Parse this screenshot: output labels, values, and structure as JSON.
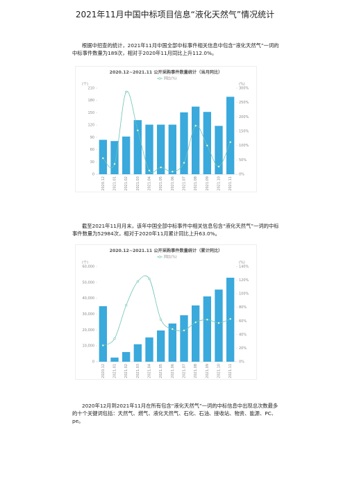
{
  "header": {
    "title": "2021年11月中国中标项目信息“液化天然气”情况统计"
  },
  "paragraphs": [
    "根据中招查的统计，2021年11月中国全部中标事件相关信息中包含“液化天然气”一词的中标事件数量为189次，相对于2020年11月同比上升112.0%。",
    "截至2021年11月月末，该年中国全部中标事件中相关信息包含“液化天然气”一词的中标事件数量为52984次，相对于2020年11月累计同比上升63.0%。",
    "2020年12月到2021年11月在所有包含“液化天然气”一词的中标信息中出现总次数最多的十个关键词包括：天然气、燃气、液化天然气、石化、石油、接收站、物资、能源、PC、pe。"
  ],
  "chart_data": [
    {
      "type": "combo",
      "title": "2020.12~2021.11 公开采购事件数量统计（当月同比）",
      "ylabel": "(个)",
      "y2label": "(%)",
      "categories": [
        "2020.12",
        "2021.01",
        "2021.02",
        "2021.03",
        "2021.04",
        "2021.05",
        "2021.06",
        "2021.07",
        "2021.08",
        "2021.09",
        "2021.10",
        "2021.11"
      ],
      "series": [
        {
          "type": "bar",
          "color": "#3aa9dc",
          "values": [
            84,
            81,
            92,
            132,
            121,
            121,
            121,
            151,
            165,
            152,
            118,
            189
          ]
        },
        {
          "type": "line",
          "name": "同比(%)",
          "color": "#6cc3b5",
          "axis": "y2",
          "values": [
            56,
            36,
            287,
            153,
            13,
            24,
            9,
            40,
            169,
            100,
            27,
            112
          ]
        }
      ],
      "ylim": [
        0,
        210
      ],
      "yticks": [
        0,
        30,
        60,
        90,
        120,
        150,
        180,
        210
      ],
      "y2lim": [
        0,
        300
      ],
      "y2ticks": [
        {
          "value": 0,
          "label": "0%"
        },
        {
          "value": 50,
          "label": "50%"
        },
        {
          "value": 100,
          "label": "100%"
        },
        {
          "value": 150,
          "label": "150%"
        },
        {
          "value": 200,
          "label": "200%"
        },
        {
          "value": 250,
          "label": "250%"
        },
        {
          "value": 300,
          "label": "300%"
        }
      ]
    },
    {
      "type": "combo",
      "title": "2020.12~2021.11 公开采购事件数量统计（累计同比）",
      "ylabel": "(个)",
      "y2label": "(%)",
      "categories": [
        "2020.12",
        "2021.01",
        "2021.02",
        "2021.03",
        "2021.04",
        "2021.05",
        "2021.06",
        "2021.07",
        "2021.08",
        "2021.09",
        "2021.10",
        "2021.11"
      ],
      "series": [
        {
          "type": "bar",
          "color": "#3aa9dc",
          "values": [
            35000,
            2600,
            6100,
            11000,
            15300,
            19700,
            24100,
            29300,
            35500,
            41200,
            45500,
            52984
          ]
        },
        {
          "type": "line",
          "name": "同比(%)",
          "color": "#6cc3b5",
          "axis": "y2",
          "values": [
            24,
            34,
            83,
            118,
            122,
            62,
            48,
            46,
            58,
            62,
            57,
            63
          ]
        }
      ],
      "ylim": [
        0,
        60000
      ],
      "yticks": [
        0,
        {
          "value": 10000,
          "label": "10,000"
        },
        {
          "value": 20000,
          "label": "20,000"
        },
        {
          "value": 30000,
          "label": "30,000"
        },
        {
          "value": 40000,
          "label": "40,000"
        },
        {
          "value": 50000,
          "label": "50,000"
        },
        {
          "value": 60000,
          "label": "60,000"
        }
      ],
      "y2lim": [
        0,
        140
      ],
      "y2ticks": [
        {
          "value": 0,
          "label": "0%"
        },
        {
          "value": 20,
          "label": "20%"
        },
        {
          "value": 40,
          "label": "40%"
        },
        {
          "value": 60,
          "label": "60%"
        },
        {
          "value": 80,
          "label": "80%"
        },
        {
          "value": 100,
          "label": "100%"
        },
        {
          "value": 120,
          "label": "120%"
        },
        {
          "value": 140,
          "label": "140%"
        }
      ]
    }
  ]
}
